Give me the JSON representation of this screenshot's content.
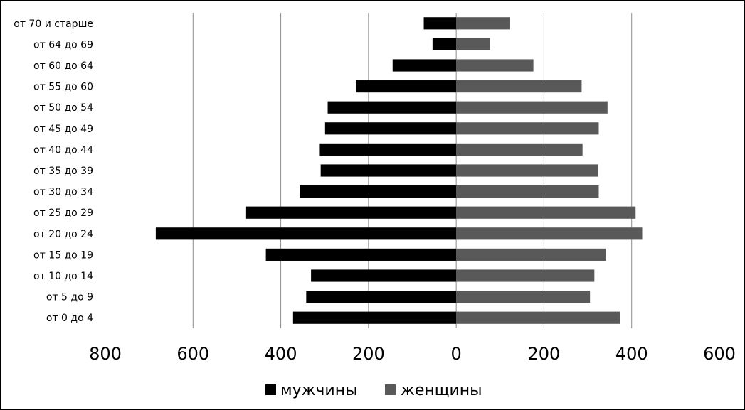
{
  "chart_data": {
    "type": "bar",
    "orientation": "horizontal",
    "layout": "population-pyramid",
    "categories": [
      "от 0 до 4",
      "от 5 до 9",
      "от 10 до 14",
      "от 15 до 19",
      "от 20 до 24",
      "от 25 до 29",
      "от 30 до 34",
      "от 35 до 39",
      "от 40 до 44",
      "от 45 до 49",
      "от 50 до 54",
      "от 55 до 60",
      "от 60 до 64",
      "от 64 до 69",
      "от 70 и старше"
    ],
    "series": [
      {
        "name": "мужчины",
        "side": "left",
        "color": "#000000",
        "values": [
          372,
          342,
          331,
          434,
          685,
          479,
          357,
          309,
          311,
          299,
          293,
          229,
          145,
          54,
          74
        ]
      },
      {
        "name": "женщины",
        "side": "right",
        "color": "#595959",
        "values": [
          373,
          305,
          315,
          341,
          424,
          409,
          325,
          323,
          288,
          325,
          345,
          286,
          176,
          77,
          123
        ]
      }
    ],
    "xlim": [
      -800,
      600
    ],
    "x_ticks": [
      -800,
      -600,
      -400,
      -200,
      0,
      200,
      400,
      600
    ],
    "x_tick_labels": [
      "800",
      "600",
      "400",
      "200",
      "0",
      "200",
      "400",
      "600"
    ],
    "gridlines": true,
    "legend_position": "bottom",
    "title": "",
    "xlabel": "",
    "ylabel": ""
  }
}
